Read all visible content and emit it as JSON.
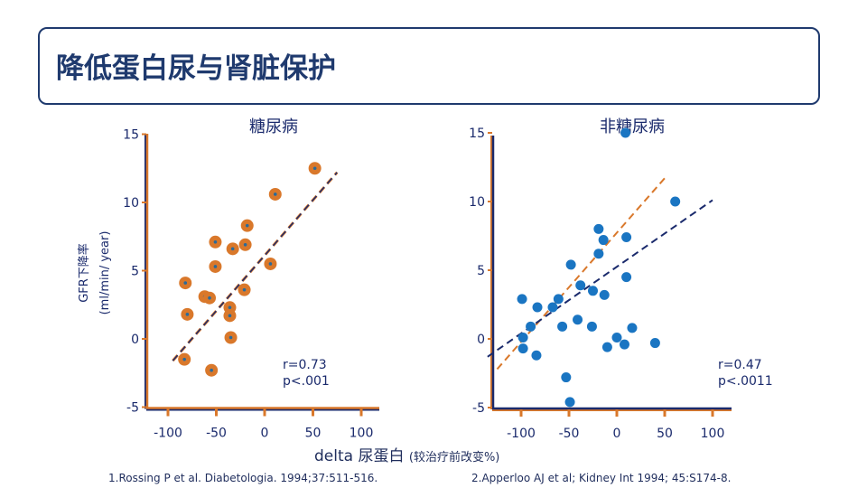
{
  "title": "降低蛋白尿与肾脏保护",
  "xlabel_main": "delta 尿蛋白",
  "xlabel_sub": "(较治疗前改变%)",
  "ylabel_line1": "GFR下降率",
  "ylabel_line2": "(ml/min/ year)",
  "references": [
    "1.Rossing P et al. Diabetologia. 1994;37:511-516.",
    "2.Apperloo AJ et al; Kidney Int 1994; 45:S174-8."
  ],
  "colors": {
    "navy": "#1a2a6c",
    "orange": "#d9782b",
    "blue": "#1a75c2"
  },
  "chart_data": [
    {
      "type": "scatter",
      "title": "糖尿病",
      "xlim": [
        -125,
        125
      ],
      "ylim": [
        -5,
        15
      ],
      "xticks": [
        -100,
        -50,
        0,
        50,
        100
      ],
      "yticks": [
        -5,
        0,
        5,
        10,
        15
      ],
      "annotation": [
        "r=0.73",
        "p<.001"
      ],
      "points": [
        [
          52,
          12.5
        ],
        [
          11,
          10.6
        ],
        [
          -18,
          8.3
        ],
        [
          -51,
          7.1
        ],
        [
          -33,
          6.6
        ],
        [
          -20,
          6.9
        ],
        [
          -51,
          5.3
        ],
        [
          6,
          5.5
        ],
        [
          -82,
          4.1
        ],
        [
          -62,
          3.1
        ],
        [
          -57,
          3.0
        ],
        [
          -21,
          3.6
        ],
        [
          -36,
          2.3
        ],
        [
          -36,
          1.7
        ],
        [
          -80,
          1.8
        ],
        [
          -35,
          0.1
        ],
        [
          -83,
          -1.5
        ],
        [
          -55,
          -2.3
        ]
      ],
      "fit_lines": [
        {
          "color": "orange_navy",
          "from": [
            -95,
            -1.6
          ],
          "to": [
            75,
            12.2
          ]
        }
      ]
    },
    {
      "type": "scatter",
      "title": "非糖尿病",
      "xlim": [
        -135,
        120
      ],
      "ylim": [
        -5,
        15
      ],
      "xticks": [
        -100,
        -50,
        0,
        50,
        100
      ],
      "yticks": [
        -5,
        0,
        5,
        10,
        15
      ],
      "annotation": [
        "r=0.47",
        "p<.0011"
      ],
      "points": [
        [
          9,
          15
        ],
        [
          61,
          10
        ],
        [
          -19,
          8
        ],
        [
          -14,
          7.2
        ],
        [
          10,
          7.4
        ],
        [
          -19,
          6.2
        ],
        [
          -48,
          5.4
        ],
        [
          10,
          4.5
        ],
        [
          -38,
          3.9
        ],
        [
          -25,
          3.5
        ],
        [
          -13,
          3.2
        ],
        [
          -99,
          2.9
        ],
        [
          -61,
          2.9
        ],
        [
          -67,
          2.3
        ],
        [
          -83,
          2.3
        ],
        [
          -90,
          0.9
        ],
        [
          -57,
          0.9
        ],
        [
          -41,
          1.4
        ],
        [
          -26,
          0.9
        ],
        [
          16,
          0.8
        ],
        [
          -98,
          0.1
        ],
        [
          0,
          0.1
        ],
        [
          -10,
          -0.6
        ],
        [
          8,
          -0.4
        ],
        [
          40,
          -0.3
        ],
        [
          -98,
          -0.7
        ],
        [
          -84,
          -1.2
        ],
        [
          -53,
          -2.8
        ],
        [
          -49,
          -4.6
        ]
      ],
      "fit_lines": [
        {
          "color": "orange",
          "from": [
            -125,
            -2.2
          ],
          "to": [
            50,
            11.7
          ]
        },
        {
          "color": "navy",
          "from": [
            -135,
            -1.3
          ],
          "to": [
            100,
            10.1
          ]
        }
      ]
    }
  ]
}
